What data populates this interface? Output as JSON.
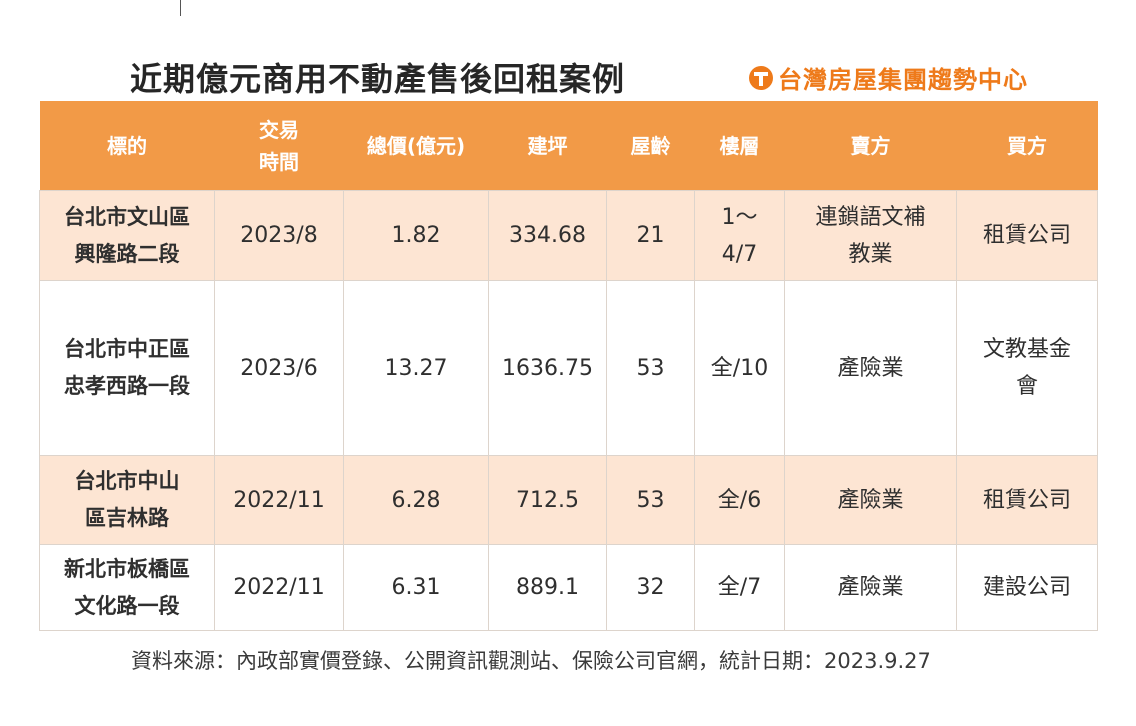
{
  "title": "近期億元商用不動產售後回租案例",
  "brand": {
    "name": "台灣房屋集團趨勢中心",
    "logo_icon": "taiwan-realty-logo-icon",
    "accent": "#ee7a1a"
  },
  "header_color": "#f29a47",
  "row_highlight_color": "#fde5d3",
  "table": {
    "headers": [
      "標的",
      "交易時間",
      "總價(億元)",
      "建坪",
      "屋齡",
      "樓層",
      "賣方",
      "買方"
    ],
    "rows": [
      [
        "台北市文山區興隆路二段",
        "2023/8",
        "1.82",
        "334.68",
        "21",
        "1～4/7",
        "連鎖語文補教業",
        "租賃公司"
      ],
      [
        "台北市中正區忠孝西路一段",
        "2023/6",
        "13.27",
        "1636.75",
        "53",
        "全/10",
        "產險業",
        "文教基金會"
      ],
      [
        "台北市中山區吉林路",
        "2022/11",
        "6.28",
        "712.5",
        "53",
        "全/6",
        "產險業",
        "租賃公司"
      ],
      [
        "新北市板橋區文化路一段",
        "2022/11",
        "6.31",
        "889.1",
        "32",
        "全/7",
        "產險業",
        "建設公司"
      ]
    ]
  },
  "source_note": "資料來源：內政部實價登錄、公開資訊觀測站、保險公司官網，統計日期：2023.9.27"
}
